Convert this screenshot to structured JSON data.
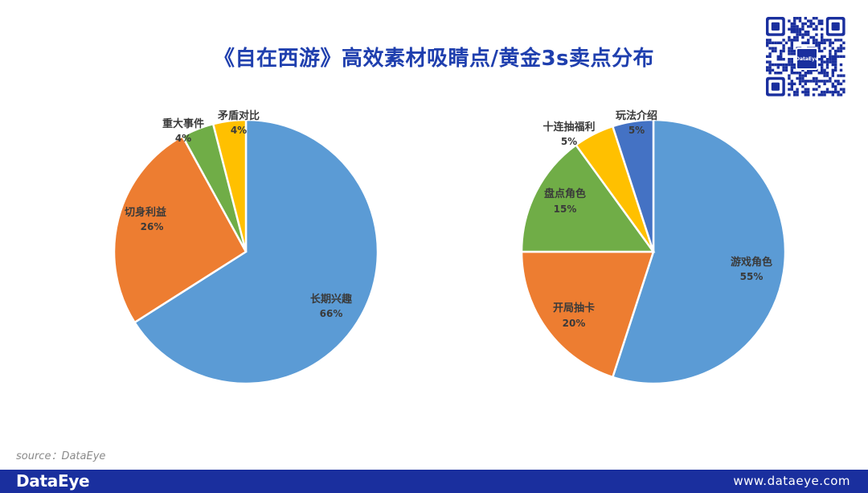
{
  "title": "《自在西游》高效素材吸睛点/黄金3s卖点分布",
  "source": "source：DataEye",
  "footer": {
    "logo": "DataEye",
    "url": "www.dataeye.com"
  },
  "qr": {
    "badge": "DataEye"
  },
  "colors": {
    "blue": "#5b9bd5",
    "orange": "#ed7d31",
    "green": "#70ad47",
    "yellow": "#ffc000",
    "navy": "#4472c4",
    "brand": "#1a2f9e"
  },
  "chart_data": [
    {
      "type": "pie",
      "categories": [
        "长期兴趣",
        "切身利益",
        "重大事件",
        "矛盾对比"
      ],
      "values": [
        66,
        26,
        4,
        4
      ],
      "labels": [
        "66%",
        "26%",
        "4%",
        "4%"
      ],
      "colors": [
        "#5b9bd5",
        "#ed7d31",
        "#70ad47",
        "#ffc000"
      ],
      "start": "12 o'clock",
      "direction": "clockwise"
    },
    {
      "type": "pie",
      "categories": [
        "游戏角色",
        "开局抽卡",
        "盘点角色",
        "十连抽福利",
        "玩法介绍"
      ],
      "values": [
        55,
        20,
        15,
        5,
        5
      ],
      "labels": [
        "55%",
        "20%",
        "15%",
        "5%",
        "5%"
      ],
      "colors": [
        "#5b9bd5",
        "#ed7d31",
        "#70ad47",
        "#ffc000",
        "#4472c4"
      ],
      "start": "12 o'clock",
      "direction": "clockwise"
    }
  ]
}
